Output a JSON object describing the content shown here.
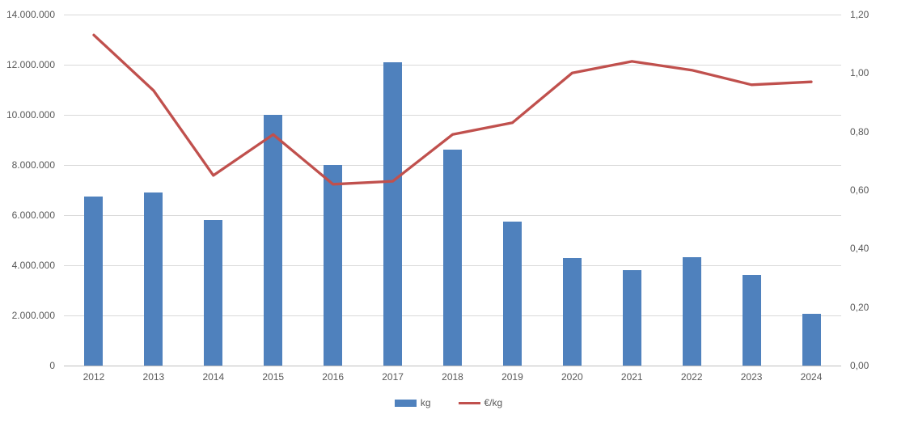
{
  "chart_data": {
    "type": "combo",
    "title": "",
    "categories": [
      "2012",
      "2013",
      "2014",
      "2015",
      "2016",
      "2017",
      "2018",
      "2019",
      "2020",
      "2021",
      "2022",
      "2023",
      "2024"
    ],
    "series": [
      {
        "name": "kg",
        "type": "bar",
        "axis": "left",
        "color": "#4F81BD",
        "values": [
          6750000,
          6900000,
          5800000,
          10000000,
          8000000,
          12100000,
          8600000,
          5750000,
          4300000,
          3800000,
          4330000,
          3600000,
          2070000
        ]
      },
      {
        "name": "€/kg",
        "type": "line",
        "axis": "right",
        "color": "#C0504D",
        "values": [
          1.13,
          0.94,
          0.65,
          0.79,
          0.62,
          0.63,
          0.79,
          0.83,
          1.0,
          1.04,
          1.01,
          0.96,
          0.97
        ]
      }
    ],
    "left_axis": {
      "min": 0,
      "max": 14000000,
      "step": 2000000,
      "ticks": [
        "0",
        "2.000.000",
        "4.000.000",
        "6.000.000",
        "8.000.000",
        "10.000.000",
        "12.000.000",
        "14.000.000"
      ]
    },
    "right_axis": {
      "min": 0,
      "max": 1.2,
      "step": 0.2,
      "ticks": [
        "0,00",
        "0,20",
        "0,40",
        "0,60",
        "0,80",
        "1,00",
        "1,20"
      ]
    },
    "grid": true,
    "legend_position": "bottom",
    "colors": {
      "gridline": "#D9D9D9",
      "axis_line": "#BFBFBF",
      "axis_text": "#595959",
      "background": "#FFFFFF"
    }
  }
}
